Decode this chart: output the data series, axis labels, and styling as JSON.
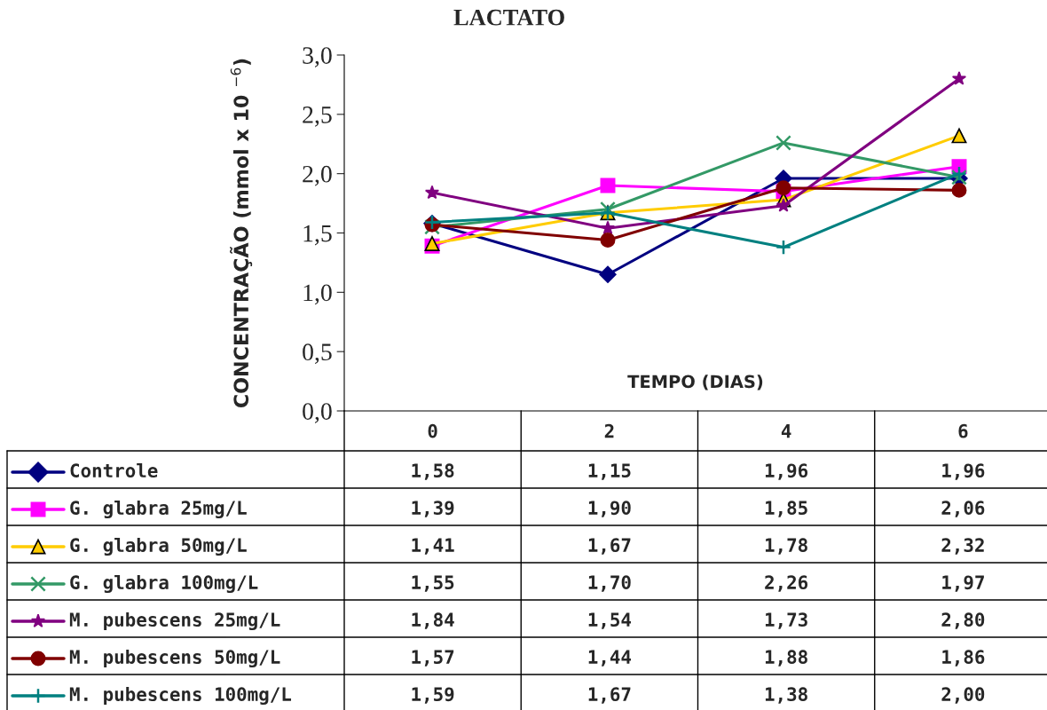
{
  "chart_data": {
    "type": "line",
    "title": "LACTATO",
    "ylabel": "CONCENTRAÇÃO (mmol x 10 $^{−6}$)",
    "xlabel": "TEMPO (DIAS)",
    "categories": [
      "0",
      "2",
      "4",
      "6"
    ],
    "ylim": [
      0,
      3
    ],
    "yticks": [
      {
        "value": 0,
        "label": "0,0"
      },
      {
        "value": 0.5,
        "label": "0,5"
      },
      {
        "value": 1,
        "label": "1,0"
      },
      {
        "value": 1.5,
        "label": "1,5"
      },
      {
        "value": 2,
        "label": "2,0"
      },
      {
        "value": 2.5,
        "label": "2,5"
      },
      {
        "value": 3,
        "label": "3,0"
      }
    ],
    "grid": false,
    "legend": "bottom",
    "data_labels": true,
    "series": [
      {
        "name": "Controle",
        "color": "#000080",
        "marker": "diamond",
        "values": [
          1.58,
          1.15,
          1.96,
          1.96
        ],
        "value_labels": [
          "1,58",
          "1,15",
          "1,96",
          "1,96"
        ]
      },
      {
        "name": "G. glabra 25mg/L",
        "color": "#ff00ff",
        "marker": "square",
        "values": [
          1.39,
          1.9,
          1.85,
          2.06
        ],
        "value_labels": [
          "1,39",
          "1,90",
          "1,85",
          "2,06"
        ]
      },
      {
        "name": "G. glabra 50mg/L",
        "color": "#ffcc00",
        "marker": "triangle",
        "values": [
          1.41,
          1.67,
          1.78,
          2.32
        ],
        "value_labels": [
          "1,41",
          "1,67",
          "1,78",
          "2,32"
        ]
      },
      {
        "name": "G. glabra 100mg/L",
        "color": "#339966",
        "marker": "cross",
        "values": [
          1.55,
          1.7,
          2.26,
          1.97
        ],
        "value_labels": [
          "1,55",
          "1,70",
          "2,26",
          "1,97"
        ]
      },
      {
        "name": "M. pubescens 25mg/L",
        "color": "#800080",
        "marker": "star",
        "values": [
          1.84,
          1.54,
          1.73,
          2.8
        ],
        "value_labels": [
          "1,84",
          "1,54",
          "1,73",
          "2,80"
        ]
      },
      {
        "name": "M. pubescens 50mg/L",
        "color": "#800000",
        "marker": "circle",
        "values": [
          1.57,
          1.44,
          1.88,
          1.86
        ],
        "value_labels": [
          "1,57",
          "1,44",
          "1,88",
          "1,86"
        ]
      },
      {
        "name": "M. pubescens 100mg/L",
        "color": "#008080",
        "marker": "plus",
        "values": [
          1.59,
          1.67,
          1.38,
          2.0
        ],
        "value_labels": [
          "1,59",
          "1,67",
          "1,38",
          "2,00"
        ]
      }
    ]
  }
}
